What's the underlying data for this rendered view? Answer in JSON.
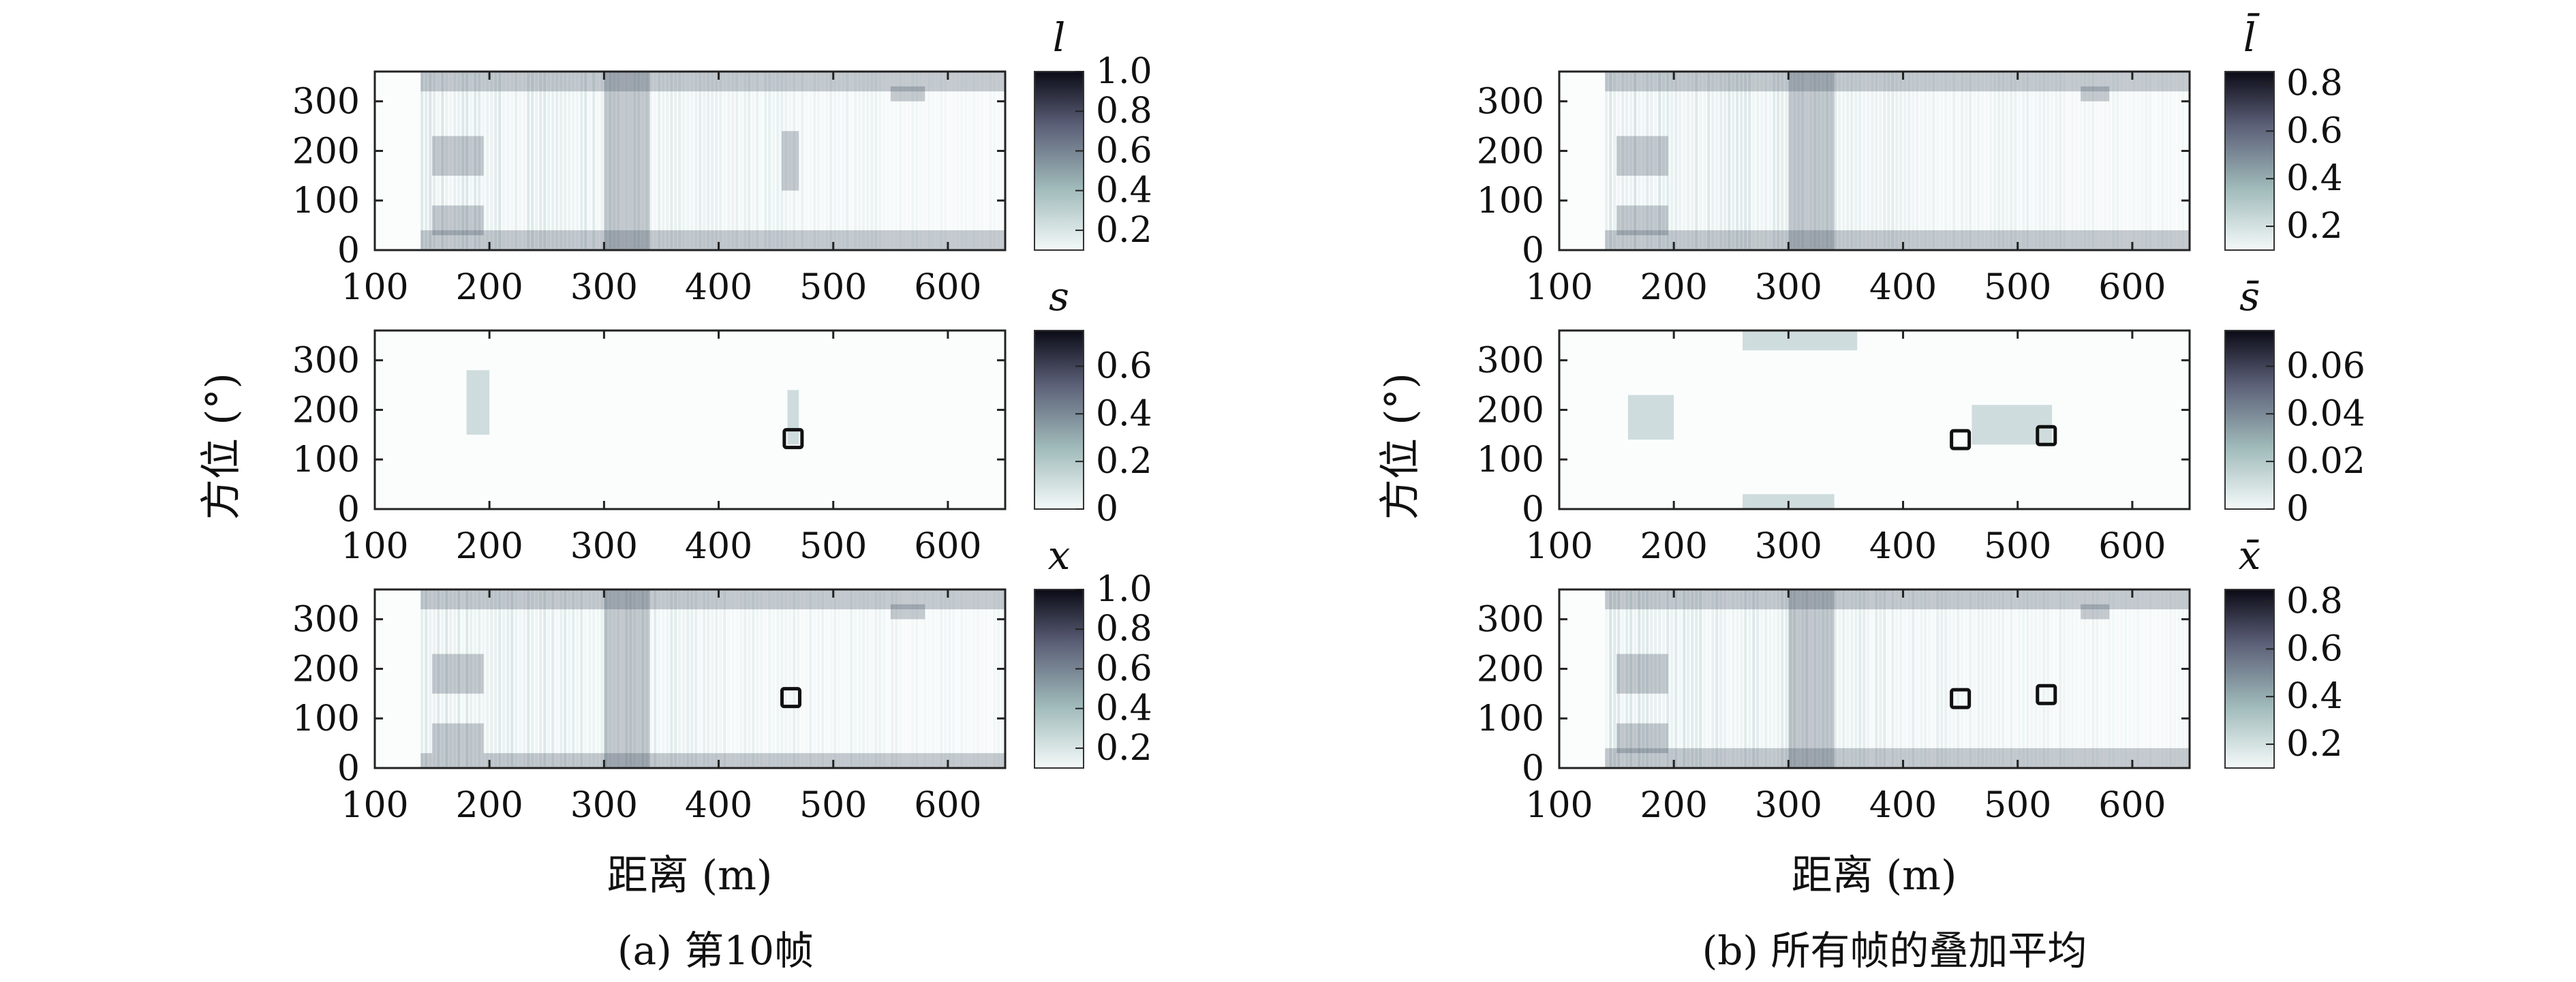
{
  "captions": [
    "(a) 第10帧",
    "(b) 所有帧的叠加平均"
  ],
  "ylabel": "方位 (°)",
  "xlabel": "距离 (m)",
  "chart_data": [
    {
      "type": "heatmap",
      "panel": "a",
      "row": 1,
      "colorbar_label": "l",
      "xticks": [
        "100",
        "200",
        "300",
        "400",
        "500",
        "600"
      ],
      "xlim": [
        100,
        650
      ],
      "yticks": [
        "0",
        "100",
        "200",
        "300"
      ],
      "ylim": [
        0,
        360
      ],
      "cbar_ticks": [
        "0.2",
        "0.4",
        "0.6",
        "0.8",
        "1.0"
      ],
      "cbar_range": [
        0.1,
        1.0
      ],
      "hot_bands": [
        {
          "x": [
            150,
            195
          ],
          "y": [
            30,
            90
          ]
        },
        {
          "x": [
            150,
            195
          ],
          "y": [
            150,
            230
          ]
        },
        {
          "x": [
            140,
            650
          ],
          "y": [
            320,
            360
          ]
        },
        {
          "x": [
            140,
            650
          ],
          "y": [
            0,
            40
          ]
        },
        {
          "x": [
            300,
            340
          ],
          "y": [
            0,
            360
          ]
        },
        {
          "x": [
            455,
            470
          ],
          "y": [
            120,
            240
          ]
        },
        {
          "x": [
            550,
            580
          ],
          "y": [
            300,
            330
          ]
        }
      ],
      "targets": []
    },
    {
      "type": "heatmap",
      "panel": "a",
      "row": 2,
      "colorbar_label": "s",
      "xticks": [
        "100",
        "200",
        "300",
        "400",
        "500",
        "600"
      ],
      "xlim": [
        100,
        650
      ],
      "yticks": [
        "0",
        "100",
        "200",
        "300"
      ],
      "ylim": [
        0,
        360
      ],
      "cbar_ticks": [
        "0",
        "0.2",
        "0.4",
        "0.6"
      ],
      "cbar_range": [
        0,
        0.75
      ],
      "hot_bands": [
        {
          "x": [
            180,
            200
          ],
          "y": [
            150,
            280
          ]
        },
        {
          "x": [
            460,
            470
          ],
          "y": [
            130,
            240
          ]
        }
      ],
      "targets": [
        {
          "x": 465,
          "y": 142
        }
      ]
    },
    {
      "type": "heatmap",
      "panel": "a",
      "row": 3,
      "colorbar_label": "x",
      "xticks": [
        "100",
        "200",
        "300",
        "400",
        "500",
        "600"
      ],
      "xlim": [
        100,
        650
      ],
      "yticks": [
        "0",
        "100",
        "200",
        "300"
      ],
      "ylim": [
        0,
        360
      ],
      "cbar_ticks": [
        "0.2",
        "0.4",
        "0.6",
        "0.8",
        "1.0"
      ],
      "cbar_range": [
        0.1,
        1.0
      ],
      "hot_bands": [
        {
          "x": [
            150,
            195
          ],
          "y": [
            30,
            90
          ]
        },
        {
          "x": [
            150,
            195
          ],
          "y": [
            150,
            230
          ]
        },
        {
          "x": [
            140,
            650
          ],
          "y": [
            320,
            360
          ]
        },
        {
          "x": [
            140,
            650
          ],
          "y": [
            0,
            30
          ]
        },
        {
          "x": [
            300,
            340
          ],
          "y": [
            0,
            360
          ]
        },
        {
          "x": [
            550,
            580
          ],
          "y": [
            300,
            330
          ]
        }
      ],
      "targets": [
        {
          "x": 463,
          "y": 142
        }
      ]
    },
    {
      "type": "heatmap",
      "panel": "b",
      "row": 1,
      "colorbar_label": "l̄",
      "xticks": [
        "100",
        "200",
        "300",
        "400",
        "500",
        "600"
      ],
      "xlim": [
        100,
        650
      ],
      "yticks": [
        "0",
        "100",
        "200",
        "300"
      ],
      "ylim": [
        0,
        360
      ],
      "cbar_ticks": [
        "0.2",
        "0.4",
        "0.6",
        "0.8"
      ],
      "cbar_range": [
        0.1,
        0.85
      ],
      "hot_bands": [
        {
          "x": [
            150,
            195
          ],
          "y": [
            30,
            90
          ]
        },
        {
          "x": [
            150,
            195
          ],
          "y": [
            150,
            230
          ]
        },
        {
          "x": [
            140,
            650
          ],
          "y": [
            320,
            360
          ]
        },
        {
          "x": [
            140,
            650
          ],
          "y": [
            0,
            40
          ]
        },
        {
          "x": [
            300,
            340
          ],
          "y": [
            0,
            360
          ]
        },
        {
          "x": [
            555,
            580
          ],
          "y": [
            300,
            330
          ]
        }
      ],
      "targets": []
    },
    {
      "type": "heatmap",
      "panel": "b",
      "row": 2,
      "colorbar_label": "s̄",
      "xticks": [
        "100",
        "200",
        "300",
        "400",
        "500",
        "600"
      ],
      "xlim": [
        100,
        650
      ],
      "yticks": [
        "0",
        "100",
        "200",
        "300"
      ],
      "ylim": [
        0,
        360
      ],
      "cbar_ticks": [
        "0",
        "0.02",
        "0.04",
        "0.06"
      ],
      "cbar_range": [
        0,
        0.075
      ],
      "hot_bands": [
        {
          "x": [
            160,
            200
          ],
          "y": [
            140,
            230
          ]
        },
        {
          "x": [
            260,
            360
          ],
          "y": [
            320,
            360
          ]
        },
        {
          "x": [
            460,
            530
          ],
          "y": [
            130,
            210
          ]
        },
        {
          "x": [
            260,
            340
          ],
          "y": [
            0,
            30
          ]
        }
      ],
      "targets": [
        {
          "x": 450,
          "y": 140
        },
        {
          "x": 525,
          "y": 148
        }
      ]
    },
    {
      "type": "heatmap",
      "panel": "b",
      "row": 3,
      "colorbar_label": "x̄",
      "xticks": [
        "100",
        "200",
        "300",
        "400",
        "500",
        "600"
      ],
      "xlim": [
        100,
        650
      ],
      "yticks": [
        "0",
        "100",
        "200",
        "300"
      ],
      "ylim": [
        0,
        360
      ],
      "cbar_ticks": [
        "0.2",
        "0.4",
        "0.6",
        "0.8"
      ],
      "cbar_range": [
        0.1,
        0.85
      ],
      "hot_bands": [
        {
          "x": [
            150,
            195
          ],
          "y": [
            30,
            90
          ]
        },
        {
          "x": [
            150,
            195
          ],
          "y": [
            150,
            230
          ]
        },
        {
          "x": [
            140,
            650
          ],
          "y": [
            320,
            360
          ]
        },
        {
          "x": [
            140,
            650
          ],
          "y": [
            0,
            40
          ]
        },
        {
          "x": [
            300,
            340
          ],
          "y": [
            0,
            360
          ]
        },
        {
          "x": [
            555,
            580
          ],
          "y": [
            300,
            330
          ]
        }
      ],
      "targets": [
        {
          "x": 450,
          "y": 140
        },
        {
          "x": 525,
          "y": 148
        }
      ]
    }
  ]
}
